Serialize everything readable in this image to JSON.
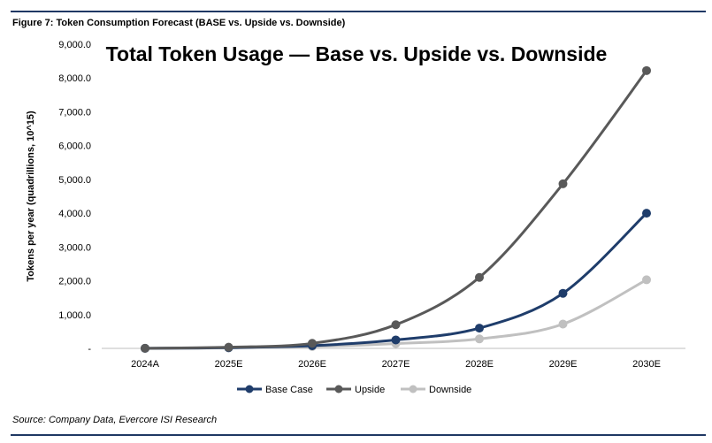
{
  "header": {
    "figure_caption": "Figure 7: Token Consumption Forecast (BASE vs. Upside vs. Downside)"
  },
  "footer": {
    "source": "Source:  Company Data, Evercore ISI Research"
  },
  "colors": {
    "rule": "#1f3864",
    "axis": "#bfbfbf"
  },
  "chart_data": {
    "type": "line",
    "title": "Total Token Usage — Base vs. Upside vs. Downside",
    "ylabel": "Tokens per year (quadrillions, 10^15)",
    "xlabel": "",
    "categories": [
      "2024A",
      "2025E",
      "2026E",
      "2027E",
      "2028E",
      "2029E",
      "2030E"
    ],
    "ylim": [
      0,
      9000
    ],
    "y_ticks": [
      0,
      1000,
      2000,
      3000,
      4000,
      5000,
      6000,
      7000,
      8000,
      9000
    ],
    "y_tick_labels": [
      "-",
      "1,000.0",
      "2,000.0",
      "3,000.0",
      "4,000.0",
      "5,000.0",
      "6,000.0",
      "7,000.0",
      "8,000.0",
      "9,000.0"
    ],
    "grid": false,
    "legend_position": "bottom",
    "series": [
      {
        "name": "Base Case",
        "color": "#1f3d6b",
        "values": [
          2,
          20,
          80,
          250,
          600,
          1630,
          4000
        ]
      },
      {
        "name": "Upside",
        "color": "#595959",
        "values": [
          3,
          35,
          150,
          700,
          2100,
          4870,
          8220
        ]
      },
      {
        "name": "Downside",
        "color": "#c0c0c0",
        "values": [
          1,
          15,
          55,
          140,
          280,
          720,
          2030
        ]
      }
    ]
  }
}
